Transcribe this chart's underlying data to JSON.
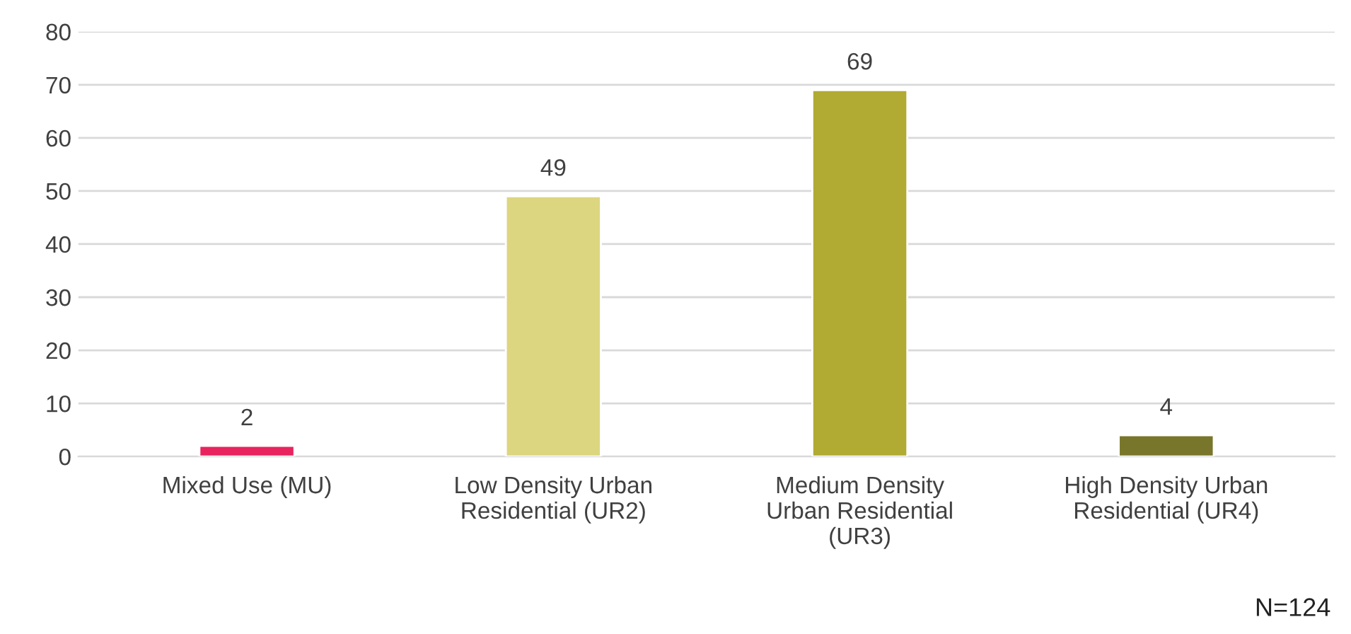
{
  "chart_data": {
    "type": "bar",
    "categories": [
      "Mixed Use (MU)",
      "Low Density Urban\nResidential (UR2)",
      "Medium Density\nUrban Residential\n(UR3)",
      "High Density Urban\nResidential (UR4)"
    ],
    "values": [
      2,
      49,
      69,
      4
    ],
    "colors": [
      "#e8245f",
      "#dcd680",
      "#b1aa33",
      "#78762a"
    ],
    "ylim": [
      0,
      80
    ],
    "yticks": [
      0,
      10,
      20,
      30,
      40,
      50,
      60,
      70,
      80
    ],
    "grid": "y",
    "data_labels": true,
    "annotations": [
      "N=124"
    ]
  }
}
